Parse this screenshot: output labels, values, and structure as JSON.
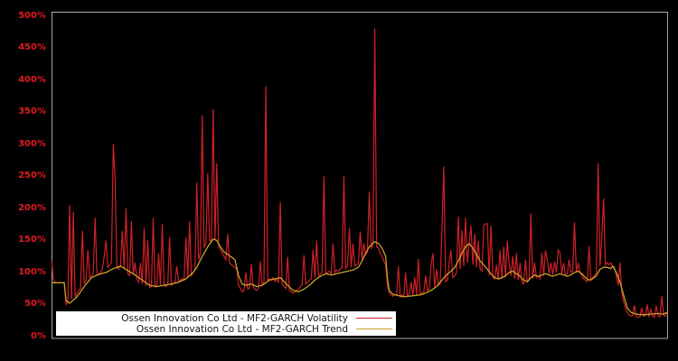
{
  "figure": {
    "background": "#000000",
    "plot_border_color": "#a8a8a8"
  },
  "axes": {
    "tick_color": "#dd1c21",
    "y_ticks": [
      {
        "label": "0%",
        "value": 0
      },
      {
        "label": "50%",
        "value": 50
      },
      {
        "label": "100%",
        "value": 100
      },
      {
        "label": "150%",
        "value": 150
      },
      {
        "label": "200%",
        "value": 200
      },
      {
        "label": "250%",
        "value": 250
      },
      {
        "label": "300%",
        "value": 300
      },
      {
        "label": "350%",
        "value": 350
      },
      {
        "label": "400%",
        "value": 400
      },
      {
        "label": "450%",
        "value": 450
      },
      {
        "label": "500%",
        "value": 500
      }
    ]
  },
  "legend": {
    "background": "#ffffff",
    "position": "lower-left"
  },
  "chart_data": {
    "type": "line",
    "title": "",
    "xlabel": "",
    "ylabel": "",
    "y_unit": "percent",
    "ylim": [
      0,
      510
    ],
    "grid": false,
    "legend_position": "lower-left",
    "x_axis_labels_visible": false,
    "series": [
      {
        "name": "Ossen Innovation Co Ltd - MF2-GARCH Volatility",
        "color": "#cf2127",
        "values": [
          120,
          90,
          84,
          84,
          84,
          84,
          84,
          84,
          50,
          55,
          205,
          58,
          195,
          62,
          68,
          72,
          75,
          165,
          82,
          88,
          135,
          92,
          95,
          98,
          185,
          100,
          96,
          100,
          105,
          125,
          150,
          108,
          112,
          115,
          300,
          245,
          108,
          105,
          110,
          165,
          107,
          200,
          98,
          95,
          180,
          96,
          115,
          90,
          85,
          115,
          82,
          170,
          79,
          150,
          76,
          78,
          185,
          77,
          80,
          130,
          78,
          176,
          80,
          78,
          82,
          155,
          80,
          83,
          85,
          110,
          85,
          88,
          90,
          88,
          155,
          92,
          180,
          95,
          100,
          105,
          240,
          120,
          130,
          345,
          140,
          145,
          255,
          150,
          148,
          355,
          150,
          270,
          140,
          135,
          130,
          125,
          120,
          160,
          115,
          112,
          110,
          108,
          105,
          80,
          75,
          70,
          72,
          100,
          74,
          76,
          113,
          78,
          74,
          72,
          76,
          117,
          80,
          85,
          390,
          88,
          90,
          88,
          92,
          86,
          90,
          84,
          210,
          82,
          78,
          75,
          124,
          72,
          70,
          68,
          70,
          72,
          74,
          78,
          80,
          127,
          82,
          85,
          88,
          90,
          135,
          92,
          150,
          95,
          97,
          100,
          250,
          98,
          100,
          102,
          98,
          145,
          100,
          104,
          102,
          105,
          108,
          250,
          106,
          110,
          169,
          108,
          145,
          110,
          112,
          115,
          164,
          120,
          145,
          128,
          132,
          226,
          138,
          142,
          480,
          140,
          138,
          130,
          125,
          118,
          112,
          80,
          68,
          65,
          63,
          66,
          64,
          110,
          62,
          65,
          63,
          100,
          64,
          66,
          85,
          63,
          93,
          65,
          121,
          66,
          68,
          70,
          95,
          72,
          74,
          112,
          130,
          76,
          105,
          80,
          82,
          168,
          265,
          86,
          88,
          115,
          135,
          92,
          95,
          100,
          187,
          105,
          166,
          110,
          185,
          115,
          145,
          173,
          112,
          160,
          108,
          150,
          105,
          102,
          173,
          176,
          176,
          95,
          173,
          92,
          90,
          112,
          88,
          135,
          90,
          140,
          92,
          150,
          115,
          95,
          125,
          90,
          130,
          88,
          115,
          85,
          82,
          120,
          85,
          88,
          192,
          90,
          115,
          92,
          95,
          90,
          131,
          95,
          134,
          120,
          98,
          115,
          96,
          117,
          100,
          135,
          130,
          98,
          115,
          96,
          98,
          120,
          100,
          102,
          178,
          100,
          115,
          100,
          95,
          90,
          88,
          86,
          141,
          88,
          92,
          95,
          100,
          270,
          110,
          155,
          215,
          112,
          115,
          112,
          115,
          110,
          108,
          95,
          80,
          115,
          70,
          55,
          45,
          38,
          34,
          32,
          33,
          49,
          32,
          30,
          31,
          45,
          32,
          33,
          50,
          31,
          42,
          32,
          30,
          48,
          33,
          31,
          63,
          34,
          32,
          38
        ]
      },
      {
        "name": "Ossen Innovation Co Ltd - MF2-GARCH Trend",
        "color": "#c9a227",
        "points": [
          [
            0,
            84
          ],
          [
            7,
            84
          ],
          [
            8,
            56
          ],
          [
            10,
            52
          ],
          [
            14,
            62
          ],
          [
            18,
            78
          ],
          [
            22,
            92
          ],
          [
            26,
            97
          ],
          [
            30,
            100
          ],
          [
            34,
            106
          ],
          [
            38,
            110
          ],
          [
            42,
            103
          ],
          [
            46,
            96
          ],
          [
            50,
            88
          ],
          [
            54,
            80
          ],
          [
            58,
            78
          ],
          [
            62,
            80
          ],
          [
            66,
            82
          ],
          [
            70,
            85
          ],
          [
            74,
            90
          ],
          [
            78,
            100
          ],
          [
            80,
            108
          ],
          [
            83,
            125
          ],
          [
            86,
            140
          ],
          [
            89,
            152
          ],
          [
            91,
            150
          ],
          [
            93,
            140
          ],
          [
            95,
            132
          ],
          [
            97,
            128
          ],
          [
            99,
            124
          ],
          [
            101,
            120
          ],
          [
            103,
            95
          ],
          [
            105,
            82
          ],
          [
            107,
            80
          ],
          [
            110,
            82
          ],
          [
            113,
            78
          ],
          [
            116,
            80
          ],
          [
            118,
            84
          ],
          [
            120,
            88
          ],
          [
            123,
            90
          ],
          [
            126,
            92
          ],
          [
            128,
            86
          ],
          [
            130,
            80
          ],
          [
            133,
            72
          ],
          [
            136,
            70
          ],
          [
            139,
            74
          ],
          [
            142,
            80
          ],
          [
            145,
            88
          ],
          [
            148,
            94
          ],
          [
            151,
            98
          ],
          [
            154,
            96
          ],
          [
            157,
            98
          ],
          [
            160,
            100
          ],
          [
            163,
            102
          ],
          [
            166,
            104
          ],
          [
            169,
            108
          ],
          [
            171,
            118
          ],
          [
            173,
            130
          ],
          [
            175,
            140
          ],
          [
            177,
            146
          ],
          [
            178,
            148
          ],
          [
            180,
            145
          ],
          [
            182,
            138
          ],
          [
            184,
            125
          ],
          [
            185,
            90
          ],
          [
            186,
            72
          ],
          [
            188,
            66
          ],
          [
            191,
            64
          ],
          [
            194,
            62
          ],
          [
            197,
            63
          ],
          [
            200,
            64
          ],
          [
            203,
            65
          ],
          [
            206,
            68
          ],
          [
            209,
            72
          ],
          [
            212,
            78
          ],
          [
            215,
            88
          ],
          [
            217,
            95
          ],
          [
            220,
            102
          ],
          [
            222,
            108
          ],
          [
            224,
            118
          ],
          [
            226,
            130
          ],
          [
            228,
            140
          ],
          [
            230,
            145
          ],
          [
            232,
            138
          ],
          [
            234,
            128
          ],
          [
            236,
            118
          ],
          [
            238,
            112
          ],
          [
            240,
            105
          ],
          [
            242,
            98
          ],
          [
            244,
            92
          ],
          [
            246,
            90
          ],
          [
            248,
            92
          ],
          [
            250,
            95
          ],
          [
            252,
            100
          ],
          [
            254,
            102
          ],
          [
            256,
            98
          ],
          [
            258,
            94
          ],
          [
            260,
            88
          ],
          [
            262,
            86
          ],
          [
            264,
            92
          ],
          [
            266,
            96
          ],
          [
            268,
            94
          ],
          [
            270,
            96
          ],
          [
            272,
            98
          ],
          [
            274,
            96
          ],
          [
            276,
            94
          ],
          [
            278,
            96
          ],
          [
            280,
            98
          ],
          [
            282,
            96
          ],
          [
            284,
            94
          ],
          [
            286,
            96
          ],
          [
            288,
            100
          ],
          [
            290,
            102
          ],
          [
            292,
            98
          ],
          [
            294,
            92
          ],
          [
            296,
            88
          ],
          [
            298,
            90
          ],
          [
            300,
            95
          ],
          [
            302,
            105
          ],
          [
            304,
            108
          ],
          [
            306,
            108
          ],
          [
            308,
            106
          ],
          [
            309,
            110
          ],
          [
            311,
            100
          ],
          [
            313,
            85
          ],
          [
            315,
            65
          ],
          [
            317,
            45
          ],
          [
            319,
            38
          ],
          [
            322,
            35
          ],
          [
            326,
            34
          ],
          [
            330,
            35
          ],
          [
            334,
            36
          ],
          [
            337,
            35
          ],
          [
            339,
            38
          ]
        ]
      }
    ]
  }
}
